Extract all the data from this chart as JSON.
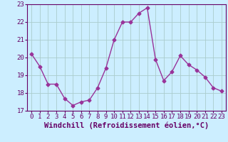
{
  "x": [
    0,
    1,
    2,
    3,
    4,
    5,
    6,
    7,
    8,
    9,
    10,
    11,
    12,
    13,
    14,
    15,
    16,
    17,
    18,
    19,
    20,
    21,
    22,
    23
  ],
  "y": [
    20.2,
    19.5,
    18.5,
    18.5,
    17.7,
    17.3,
    17.5,
    17.6,
    18.3,
    19.4,
    21.0,
    22.0,
    22.0,
    22.5,
    22.8,
    19.9,
    18.7,
    19.2,
    20.1,
    19.6,
    19.3,
    18.9,
    18.3,
    18.1
  ],
  "xlabel": "Windchill (Refroidissement éolien,°C)",
  "ylim": [
    17,
    23
  ],
  "yticks": [
    17,
    18,
    19,
    20,
    21,
    22,
    23
  ],
  "xticks": [
    0,
    1,
    2,
    3,
    4,
    5,
    6,
    7,
    8,
    9,
    10,
    11,
    12,
    13,
    14,
    15,
    16,
    17,
    18,
    19,
    20,
    21,
    22,
    23
  ],
  "line_color": "#993399",
  "marker": "D",
  "marker_size": 2.5,
  "bg_color": "#cceeff",
  "grid_color": "#aacccc",
  "xlabel_fontsize": 7.5,
  "tick_fontsize": 6.5,
  "line_width": 1.0,
  "xlim_left": -0.5,
  "xlim_right": 23.5
}
